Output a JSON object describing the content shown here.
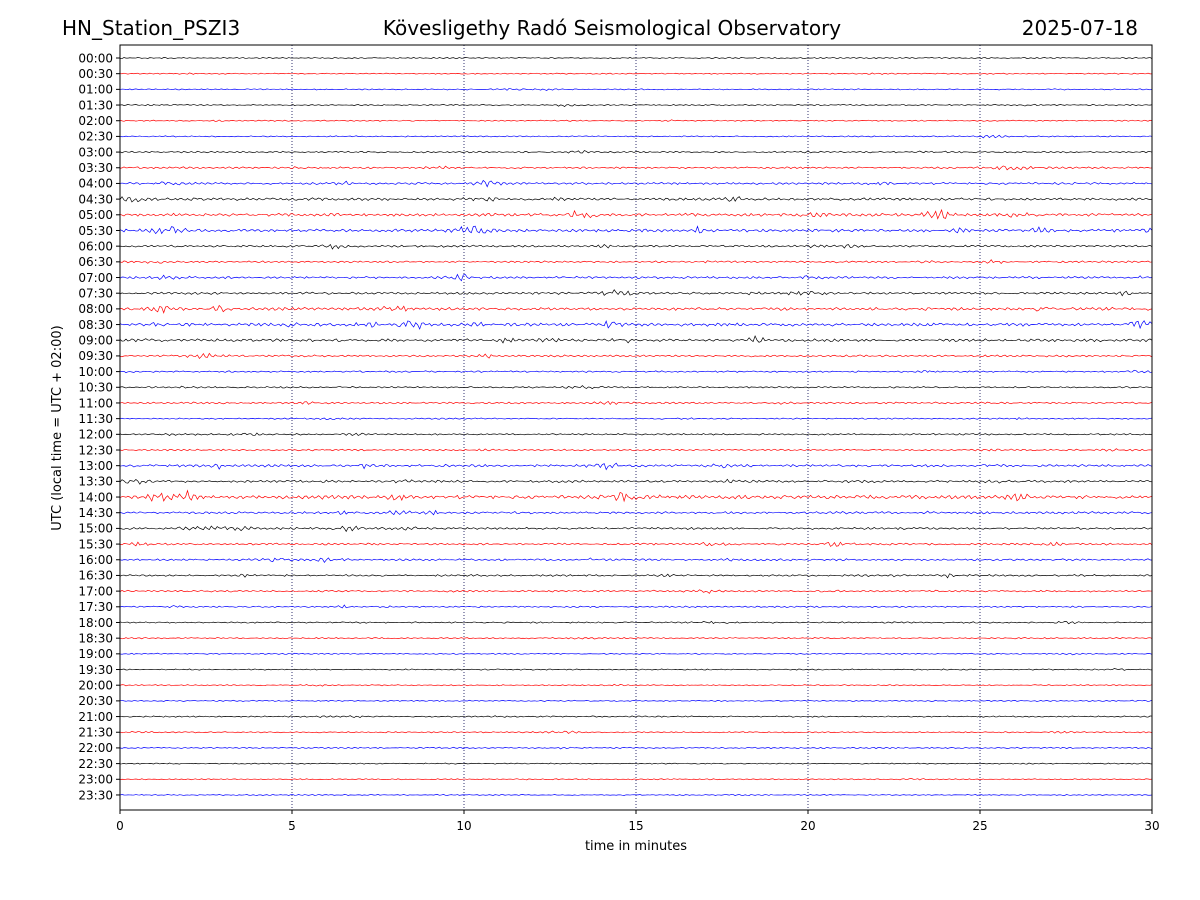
{
  "header": {
    "station": "HN_Station_PSZI3",
    "observatory": "Kövesligethy Radó Seismological Observatory",
    "date": "2025-07-18"
  },
  "chart_data": {
    "type": "line",
    "title": "Kövesligethy Radó Seismological Observatory",
    "xlabel": "time in minutes",
    "ylabel": "UTC (local time = UTC + 02:00)",
    "xlim": [
      0,
      30
    ],
    "xticks": [
      "0",
      "5",
      "10",
      "15",
      "20",
      "25",
      "30"
    ],
    "x_tick_values": [
      0,
      5,
      10,
      15,
      20,
      25,
      30
    ],
    "grid": "vertical dotted at major x ticks",
    "trace_colors": [
      "#000000",
      "#ff0000",
      "#0000ff"
    ],
    "rows": [
      {
        "label": "00:00",
        "activity": 0.15
      },
      {
        "label": "00:30",
        "activity": 0.12
      },
      {
        "label": "01:00",
        "activity": 0.15
      },
      {
        "label": "01:30",
        "activity": 0.2
      },
      {
        "label": "02:00",
        "activity": 0.15
      },
      {
        "label": "02:30",
        "activity": 0.15
      },
      {
        "label": "03:00",
        "activity": 0.3
      },
      {
        "label": "03:30",
        "activity": 0.4
      },
      {
        "label": "04:00",
        "activity": 0.5
      },
      {
        "label": "04:30",
        "activity": 0.65
      },
      {
        "label": "05:00",
        "activity": 0.8
      },
      {
        "label": "05:30",
        "activity": 0.8
      },
      {
        "label": "06:00",
        "activity": 0.45
      },
      {
        "label": "06:30",
        "activity": 0.4
      },
      {
        "label": "07:00",
        "activity": 0.55
      },
      {
        "label": "07:30",
        "activity": 0.55
      },
      {
        "label": "08:00",
        "activity": 0.8
      },
      {
        "label": "08:30",
        "activity": 0.9
      },
      {
        "label": "09:00",
        "activity": 0.75
      },
      {
        "label": "09:30",
        "activity": 0.45
      },
      {
        "label": "10:00",
        "activity": 0.3
      },
      {
        "label": "10:30",
        "activity": 0.3
      },
      {
        "label": "11:00",
        "activity": 0.35
      },
      {
        "label": "11:30",
        "activity": 0.2
      },
      {
        "label": "12:00",
        "activity": 0.3
      },
      {
        "label": "12:30",
        "activity": 0.3
      },
      {
        "label": "13:00",
        "activity": 0.65
      },
      {
        "label": "13:30",
        "activity": 0.6
      },
      {
        "label": "14:00",
        "activity": 1.0
      },
      {
        "label": "14:30",
        "activity": 0.55
      },
      {
        "label": "15:00",
        "activity": 0.5
      },
      {
        "label": "15:30",
        "activity": 0.45
      },
      {
        "label": "16:00",
        "activity": 0.45
      },
      {
        "label": "16:30",
        "activity": 0.4
      },
      {
        "label": "17:00",
        "activity": 0.4
      },
      {
        "label": "17:30",
        "activity": 0.25
      },
      {
        "label": "18:00",
        "activity": 0.25
      },
      {
        "label": "18:30",
        "activity": 0.2
      },
      {
        "label": "19:00",
        "activity": 0.15
      },
      {
        "label": "19:30",
        "activity": 0.15
      },
      {
        "label": "20:00",
        "activity": 0.15
      },
      {
        "label": "20:30",
        "activity": 0.15
      },
      {
        "label": "21:00",
        "activity": 0.2
      },
      {
        "label": "21:30",
        "activity": 0.2
      },
      {
        "label": "22:00",
        "activity": 0.2
      },
      {
        "label": "22:30",
        "activity": 0.12
      },
      {
        "label": "23:00",
        "activity": 0.12
      },
      {
        "label": "23:30",
        "activity": 0.1
      }
    ]
  }
}
